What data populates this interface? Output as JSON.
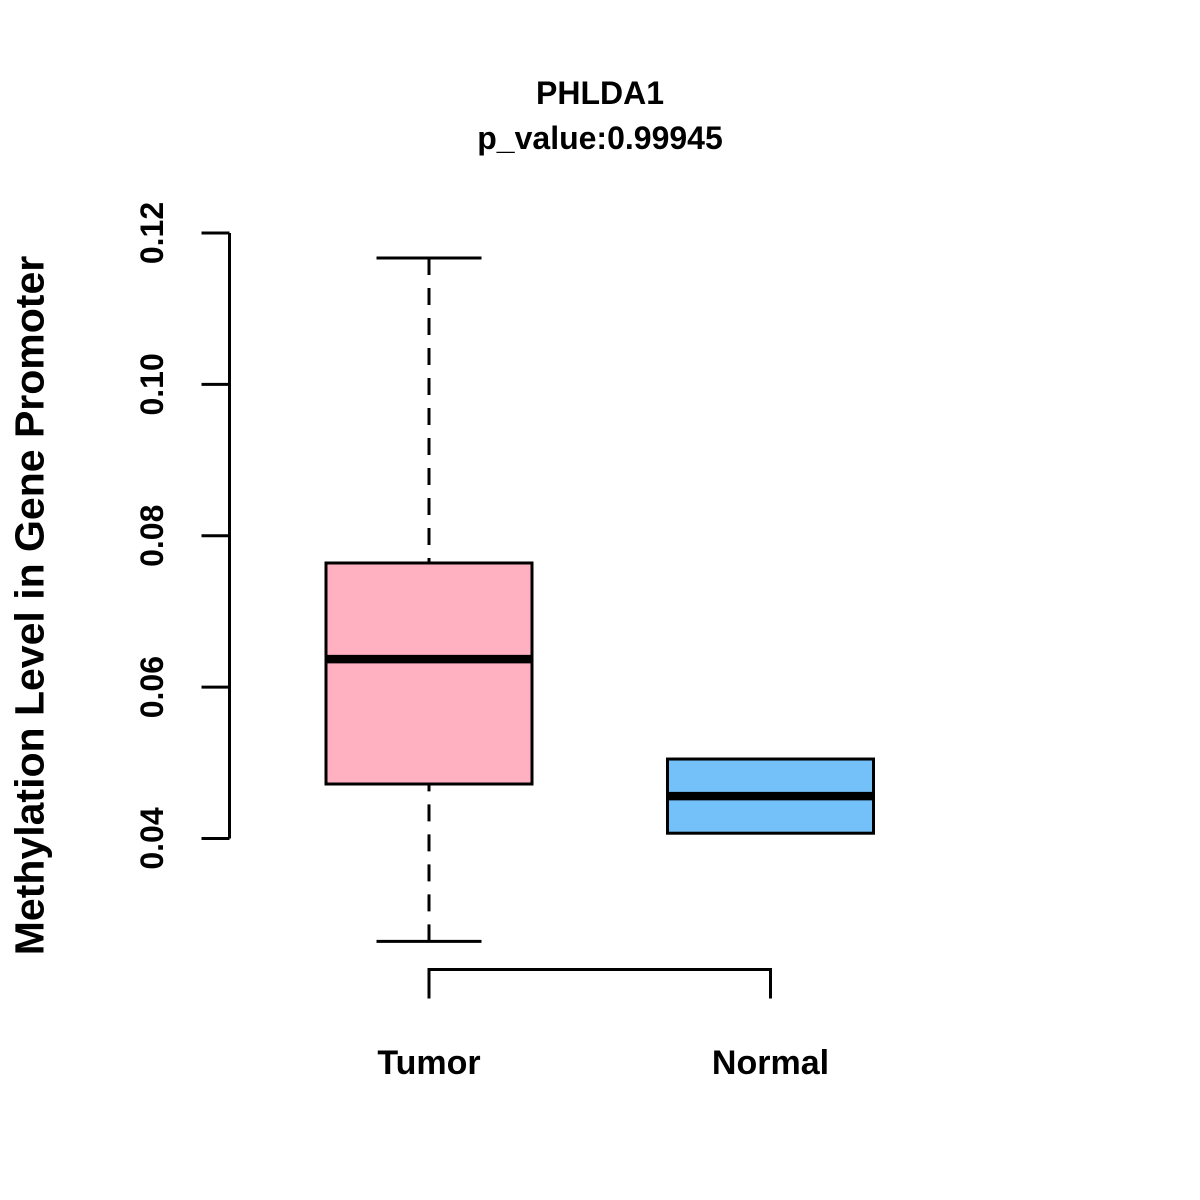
{
  "title": "PHLDA1",
  "subtitle": "p_value:0.99945",
  "p_value": "0.99945",
  "colors": {
    "tumor_fill": "#FFB1C1",
    "normal_fill": "#74C0F8",
    "line": "#000000",
    "background": "#FFFFFF"
  },
  "chart_data": {
    "type": "boxplot",
    "title": "PHLDA1",
    "subtitle": "p_value:0.99945",
    "ylabel": "Methylation Level in Gene Promoter",
    "xlabel": "",
    "categories": [
      "Tumor",
      "Normal"
    ],
    "ylim": [
      0.04,
      0.12
    ],
    "yticks": [
      0.04,
      0.06,
      0.08,
      0.1,
      0.12
    ],
    "grid": false,
    "legend": "none",
    "series": [
      {
        "name": "Tumor",
        "color": "#FFB1C1",
        "min": 0.0264,
        "q1": 0.0472,
        "median": 0.0637,
        "q3": 0.0764,
        "max": 0.1167,
        "whiskers": true,
        "whisker_style": "dashed",
        "outliers": []
      },
      {
        "name": "Normal",
        "color": "#74C0F8",
        "min": null,
        "q1": 0.0407,
        "median": 0.0456,
        "q3": 0.0505,
        "max": null,
        "whiskers": false,
        "outliers": []
      }
    ]
  }
}
